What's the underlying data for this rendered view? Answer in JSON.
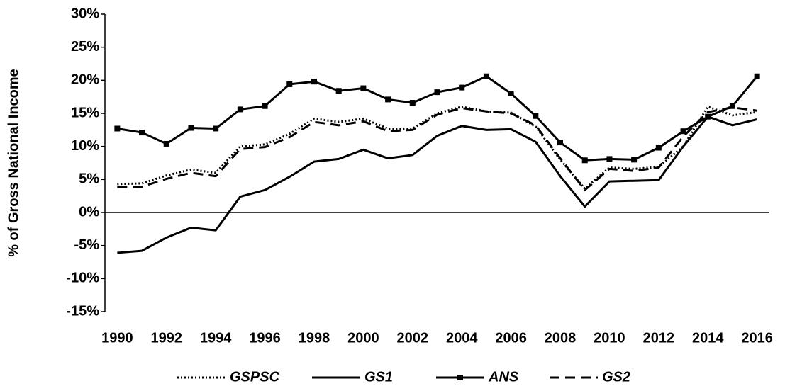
{
  "chart_data": {
    "type": "line",
    "y_label": "% of Gross National Income",
    "categories": [
      "1990",
      null,
      "1992",
      null,
      "1994",
      null,
      "1996",
      null,
      "1998",
      null,
      "2000",
      null,
      "2002",
      null,
      "2004",
      null,
      "2006",
      null,
      "2008",
      null,
      "2010",
      null,
      "2012",
      null,
      "2014",
      null,
      "2016"
    ],
    "series": [
      {
        "name": "GSPSC",
        "color": "#000000",
        "style": "dotted",
        "values": [
          4.3,
          4.4,
          5.6,
          6.5,
          6.0,
          10.0,
          10.3,
          11.9,
          14.2,
          13.7,
          14.2,
          12.7,
          12.7,
          15.0,
          16.0,
          15.3,
          15.1,
          13.0,
          8.0,
          3.6,
          6.8,
          6.6,
          6.9,
          10.0,
          16.0,
          14.7,
          15.2
        ]
      },
      {
        "name": "GS1",
        "color": "#000000",
        "style": "solid",
        "values": [
          -6.1,
          -5.8,
          -3.8,
          -2.3,
          -2.7,
          2.4,
          3.4,
          5.4,
          7.7,
          8.1,
          9.5,
          8.2,
          8.7,
          11.6,
          13.1,
          12.5,
          12.6,
          10.7,
          5.5,
          0.9,
          4.7,
          4.8,
          4.9,
          10.0,
          14.5,
          13.2,
          14.1
        ]
      },
      {
        "name": "ANS",
        "color": "#000000",
        "style": "solid",
        "marker": "square",
        "values": [
          12.7,
          12.1,
          10.4,
          12.8,
          12.7,
          15.6,
          16.1,
          19.4,
          19.8,
          18.4,
          18.8,
          17.1,
          16.6,
          18.2,
          18.9,
          20.6,
          18.0,
          14.6,
          10.6,
          7.9,
          8.1,
          8.0,
          9.8,
          12.3,
          14.5,
          16.1,
          20.6
        ]
      },
      {
        "name": "GS2",
        "color": "#000000",
        "style": "dashed",
        "values": [
          3.8,
          3.9,
          5.1,
          6.0,
          5.5,
          9.6,
          9.9,
          11.4,
          13.7,
          13.2,
          13.8,
          12.3,
          12.5,
          14.8,
          15.8,
          15.3,
          15.0,
          13.2,
          8.2,
          3.4,
          6.6,
          6.3,
          6.8,
          11.5,
          15.2,
          15.9,
          15.4
        ]
      }
    ],
    "ylim": [
      -15,
      30
    ],
    "yticks": [
      {
        "value": -15,
        "label": "-15%"
      },
      {
        "value": -10,
        "label": "-10%"
      },
      {
        "value": -5,
        "label": "-5%"
      },
      {
        "value": 0,
        "label": "0%"
      },
      {
        "value": 5,
        "label": "5%"
      },
      {
        "value": 10,
        "label": "10%"
      },
      {
        "value": 15,
        "label": "15%"
      },
      {
        "value": 20,
        "label": "20%"
      },
      {
        "value": 25,
        "label": "25%"
      },
      {
        "value": 30,
        "label": "30%"
      }
    ],
    "legend": "bottom"
  }
}
